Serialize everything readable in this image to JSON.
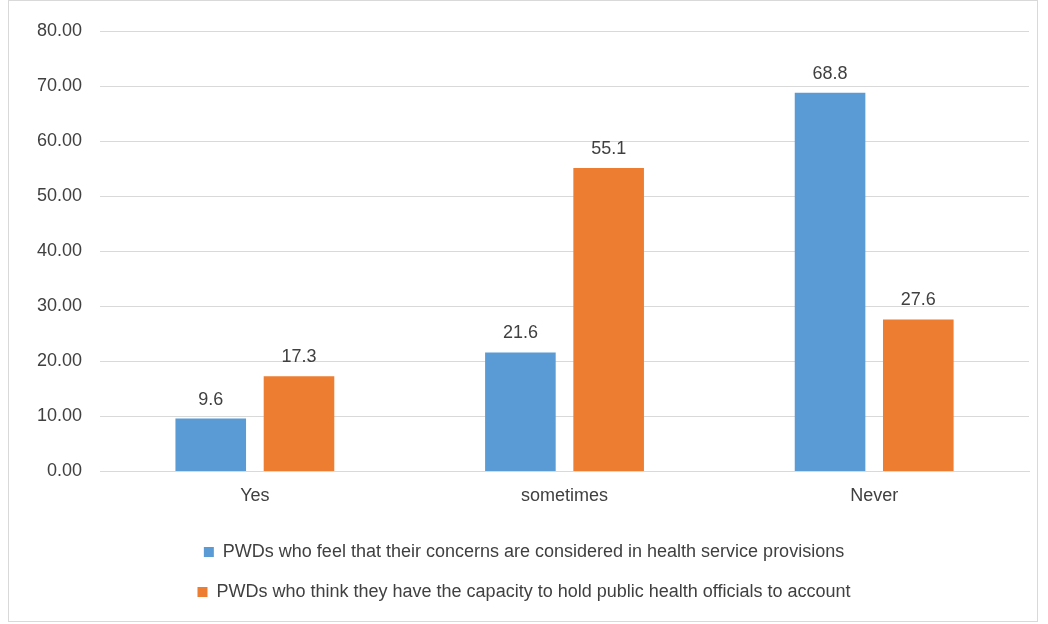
{
  "chart_data": {
    "type": "bar",
    "categories": [
      "Yes",
      "sometimes",
      "Never"
    ],
    "series": [
      {
        "name": "PWDs who feel that their concerns are considered in health service provisions",
        "color": "#5b9bd5",
        "values": [
          9.6,
          21.6,
          68.8
        ]
      },
      {
        "name": "PWDs who think they have the capacity to hold public health officials to account",
        "color": "#ed7d31",
        "values": [
          17.3,
          55.1,
          27.6
        ]
      }
    ],
    "ylim": [
      0,
      80
    ],
    "yticks": [
      {
        "value": 0,
        "label": "0.00"
      },
      {
        "value": 10,
        "label": "10.00"
      },
      {
        "value": 20,
        "label": "20.00"
      },
      {
        "value": 30,
        "label": "30.00"
      },
      {
        "value": 40,
        "label": "40.00"
      },
      {
        "value": 50,
        "label": "50.00"
      },
      {
        "value": 60,
        "label": "60.00"
      },
      {
        "value": 70,
        "label": "70.00"
      },
      {
        "value": 80,
        "label": "80.00"
      }
    ],
    "grid": "y",
    "legend": "bottom",
    "data_labels": true
  }
}
